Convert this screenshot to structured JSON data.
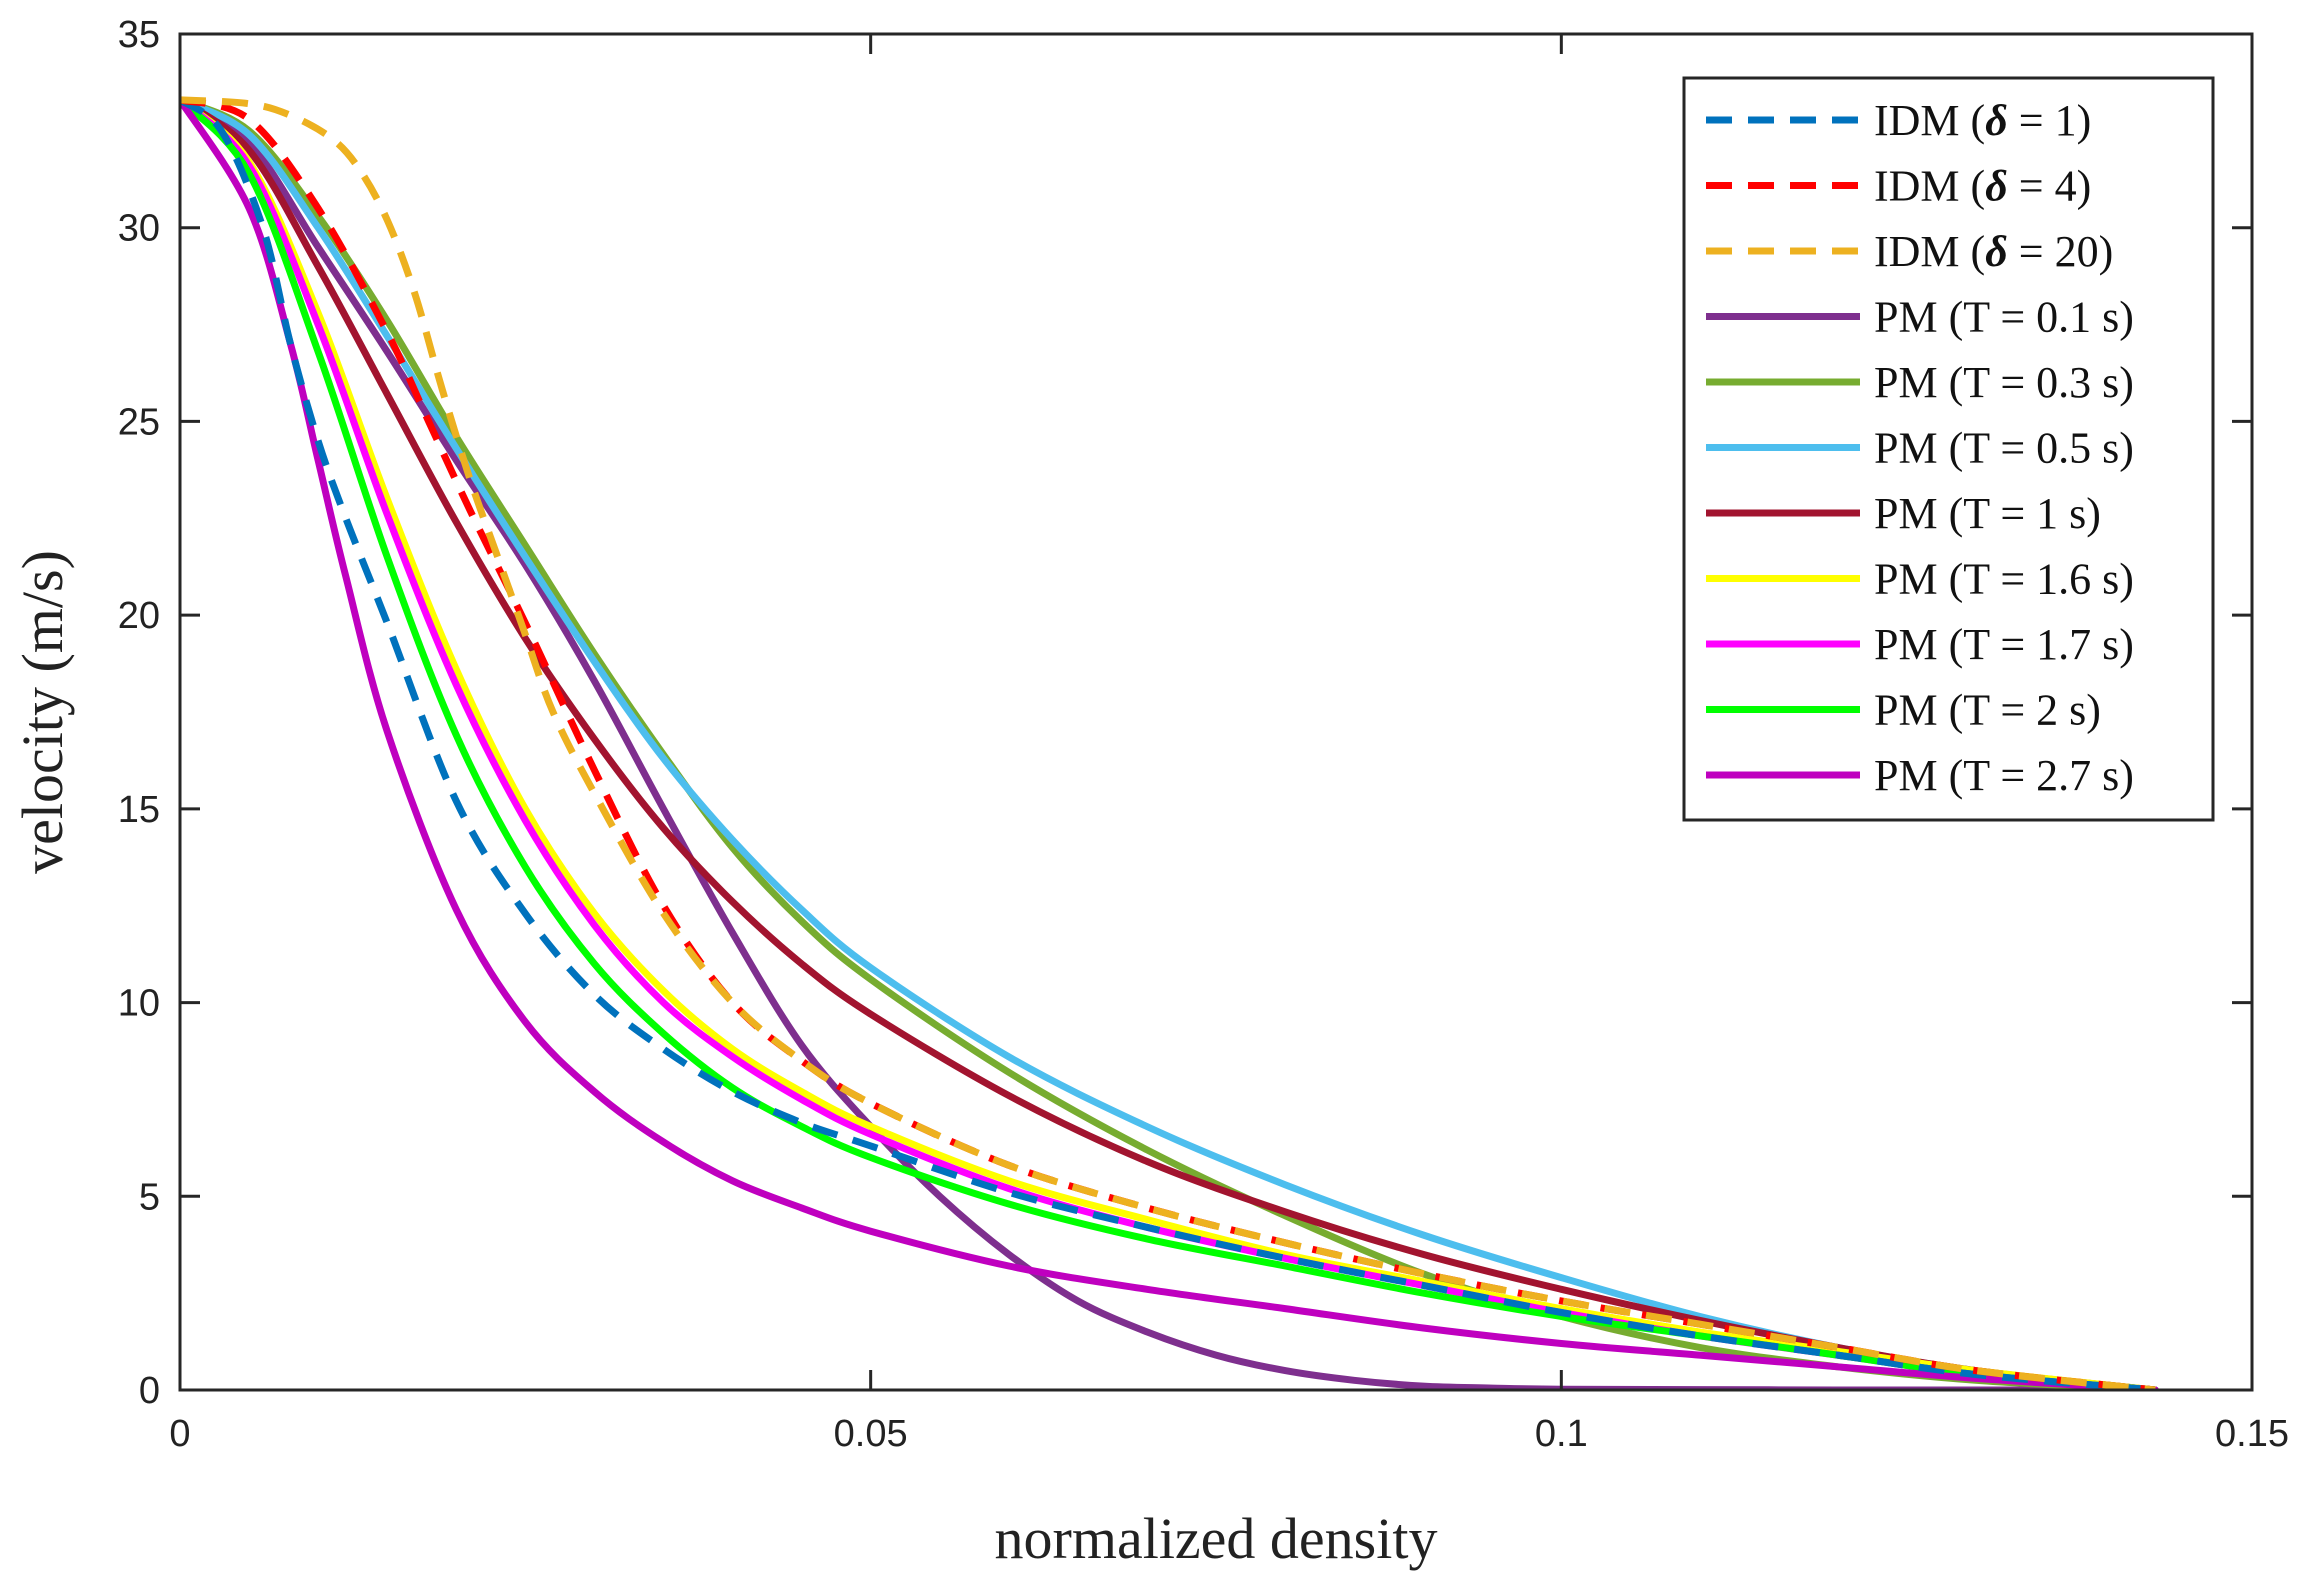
{
  "chart_data": {
    "type": "line",
    "title": "",
    "xlabel": "normalized density",
    "ylabel": "velocity (m/s)",
    "xlim": [
      0,
      0.15
    ],
    "ylim": [
      0,
      35
    ],
    "xticks": [
      0,
      0.05,
      0.1,
      0.15
    ],
    "xtick_labels": [
      "0",
      "0.05",
      "0.1",
      "0.15"
    ],
    "yticks": [
      0,
      5,
      10,
      15,
      20,
      25,
      30,
      35
    ],
    "ytick_labels": [
      "0",
      "5",
      "10",
      "15",
      "20",
      "25",
      "30",
      "35"
    ],
    "grid": false,
    "legend_position": "top-right",
    "series": [
      {
        "name": "IDM (δ = 1)",
        "label_prefix": "IDM (",
        "label_symbol": "δ",
        "label_suffix": " = 1)",
        "color": "#0072BD",
        "dash": true,
        "x": [
          0,
          0.003,
          0.006,
          0.008,
          0.01,
          0.012,
          0.015,
          0.02,
          0.025,
          0.03,
          0.035,
          0.04,
          0.045,
          0.05,
          0.06,
          0.07,
          0.08,
          0.09,
          0.1,
          0.11,
          0.12,
          0.13,
          0.143
        ],
        "y": [
          33.3,
          32.5,
          30.0,
          27.0,
          24.5,
          22.5,
          19.8,
          15.2,
          12.3,
          10.2,
          8.8,
          7.7,
          6.9,
          6.3,
          5.1,
          4.2,
          3.4,
          2.7,
          2.0,
          1.4,
          0.9,
          0.4,
          0
        ]
      },
      {
        "name": "IDM (δ = 4)",
        "label_prefix": "IDM (",
        "label_symbol": "δ",
        "label_suffix": " = 4)",
        "color": "#FF0000",
        "dash": true,
        "x": [
          0,
          0.005,
          0.01,
          0.015,
          0.018,
          0.021,
          0.025,
          0.03,
          0.035,
          0.04,
          0.045,
          0.05,
          0.06,
          0.07,
          0.08,
          0.09,
          0.1,
          0.11,
          0.12,
          0.13,
          0.143
        ],
        "y": [
          33.3,
          32.8,
          30.5,
          27.3,
          25.0,
          22.7,
          19.8,
          16.0,
          12.5,
          10.0,
          8.5,
          7.4,
          5.8,
          4.7,
          3.8,
          3.0,
          2.3,
          1.7,
          1.1,
          0.5,
          0
        ]
      },
      {
        "name": "IDM (δ = 20)",
        "label_prefix": "IDM (",
        "label_symbol": "δ",
        "label_suffix": " = 20)",
        "color": "#EDB120",
        "dash": true,
        "x": [
          0,
          0.005,
          0.008,
          0.011,
          0.013,
          0.015,
          0.017,
          0.019,
          0.021,
          0.023,
          0.025,
          0.027,
          0.03,
          0.035,
          0.04,
          0.045,
          0.05,
          0.06,
          0.07,
          0.08,
          0.09,
          0.1,
          0.11,
          0.12,
          0.13,
          0.143
        ],
        "y": [
          33.3,
          33.2,
          32.9,
          32.3,
          31.5,
          30.2,
          28.3,
          25.8,
          23.5,
          21.5,
          19.5,
          17.5,
          15.4,
          12.3,
          10.0,
          8.5,
          7.4,
          5.8,
          4.7,
          3.8,
          3.0,
          2.3,
          1.7,
          1.1,
          0.5,
          0
        ]
      },
      {
        "name": "PM (T = 0.1 s)",
        "label_prefix": "PM (T = 0.1 s)",
        "label_symbol": "",
        "label_suffix": "",
        "color": "#7E2F8E",
        "dash": false,
        "x": [
          0,
          0.005,
          0.01,
          0.015,
          0.02,
          0.025,
          0.03,
          0.035,
          0.04,
          0.045,
          0.05,
          0.055,
          0.06,
          0.065,
          0.07,
          0.075,
          0.08,
          0.085,
          0.09,
          0.095,
          0.1,
          0.11,
          0.12,
          0.13,
          0.143
        ],
        "y": [
          33.3,
          32.2,
          29.5,
          26.8,
          24.0,
          21.3,
          18.3,
          15.0,
          11.8,
          8.9,
          6.8,
          5.0,
          3.5,
          2.3,
          1.5,
          0.9,
          0.5,
          0.25,
          0.1,
          0.05,
          0.02,
          0.01,
          0,
          0,
          0
        ]
      },
      {
        "name": "PM (T = 0.3 s)",
        "label_prefix": "PM (T = 0.3 s)",
        "label_symbol": "",
        "label_suffix": "",
        "color": "#77AC30",
        "dash": false,
        "x": [
          0,
          0.005,
          0.01,
          0.015,
          0.02,
          0.025,
          0.03,
          0.035,
          0.04,
          0.045,
          0.05,
          0.06,
          0.07,
          0.08,
          0.09,
          0.1,
          0.11,
          0.12,
          0.13,
          0.143
        ],
        "y": [
          33.3,
          32.5,
          30.3,
          27.6,
          24.6,
          21.8,
          19.0,
          16.4,
          14.0,
          12.1,
          10.6,
          8.2,
          6.2,
          4.5,
          3.0,
          1.9,
          1.1,
          0.6,
          0.25,
          0
        ]
      },
      {
        "name": "PM (T = 0.5 s)",
        "label_prefix": "PM (T = 0.5 s)",
        "label_symbol": "",
        "label_suffix": "",
        "color": "#4DBEEE",
        "dash": false,
        "x": [
          0,
          0.005,
          0.01,
          0.015,
          0.02,
          0.025,
          0.03,
          0.035,
          0.04,
          0.045,
          0.05,
          0.06,
          0.07,
          0.08,
          0.09,
          0.1,
          0.11,
          0.12,
          0.13,
          0.143
        ],
        "y": [
          33.3,
          32.4,
          30.0,
          27.2,
          24.3,
          21.5,
          18.8,
          16.3,
          14.2,
          12.4,
          10.9,
          8.6,
          6.8,
          5.3,
          4.0,
          2.9,
          1.9,
          1.1,
          0.5,
          0
        ]
      },
      {
        "name": "PM (T = 1 s)",
        "label_prefix": "PM (T = 1 s)",
        "label_symbol": "",
        "label_suffix": "",
        "color": "#A2142F",
        "dash": false,
        "x": [
          0,
          0.005,
          0.01,
          0.015,
          0.02,
          0.025,
          0.03,
          0.035,
          0.04,
          0.045,
          0.05,
          0.06,
          0.07,
          0.08,
          0.09,
          0.1,
          0.11,
          0.12,
          0.13,
          0.143
        ],
        "y": [
          33.3,
          32.0,
          29.0,
          25.7,
          22.4,
          19.4,
          16.8,
          14.5,
          12.6,
          11.0,
          9.7,
          7.6,
          5.9,
          4.6,
          3.5,
          2.6,
          1.8,
          1.1,
          0.5,
          0
        ]
      },
      {
        "name": "PM (T = 1.6 s)",
        "label_prefix": "PM (T = 1.6 s)",
        "label_symbol": "",
        "label_suffix": "",
        "color": "#FFFF00",
        "dash": false,
        "x": [
          0,
          0.005,
          0.01,
          0.015,
          0.02,
          0.025,
          0.03,
          0.035,
          0.04,
          0.045,
          0.05,
          0.06,
          0.07,
          0.08,
          0.09,
          0.1,
          0.11,
          0.12,
          0.13,
          0.143
        ],
        "y": [
          33.3,
          31.7,
          27.8,
          23.0,
          18.6,
          15.0,
          12.3,
          10.3,
          8.8,
          7.7,
          6.8,
          5.4,
          4.4,
          3.5,
          2.8,
          2.1,
          1.5,
          1.0,
          0.5,
          0
        ]
      },
      {
        "name": "PM (T = 1.7 s)",
        "label_prefix": "PM (T = 1.7 s)",
        "label_symbol": "",
        "label_suffix": "",
        "color": "#FF00FF",
        "dash": false,
        "x": [
          0,
          0.005,
          0.01,
          0.015,
          0.02,
          0.025,
          0.03,
          0.035,
          0.04,
          0.045,
          0.05,
          0.06,
          0.07,
          0.08,
          0.09,
          0.1,
          0.11,
          0.12,
          0.13,
          0.143
        ],
        "y": [
          33.3,
          31.6,
          27.5,
          22.6,
          18.2,
          14.7,
          12.0,
          10.0,
          8.6,
          7.5,
          6.6,
          5.2,
          4.2,
          3.4,
          2.7,
          2.0,
          1.4,
          0.9,
          0.4,
          0
        ]
      },
      {
        "name": "PM (T = 2 s)",
        "label_prefix": "PM (T = 2 s)",
        "label_symbol": "",
        "label_suffix": "",
        "color": "#00FF00",
        "dash": false,
        "x": [
          0,
          0.005,
          0.01,
          0.015,
          0.02,
          0.025,
          0.03,
          0.035,
          0.04,
          0.045,
          0.05,
          0.06,
          0.07,
          0.08,
          0.09,
          0.1,
          0.11,
          0.12,
          0.13,
          0.143
        ],
        "y": [
          33.3,
          31.4,
          26.8,
          21.5,
          16.9,
          13.5,
          11.0,
          9.2,
          7.8,
          6.8,
          6.0,
          4.8,
          3.9,
          3.2,
          2.5,
          1.9,
          1.4,
          0.9,
          0.4,
          0
        ]
      },
      {
        "name": "PM (T = 2.7 s)",
        "label_prefix": "PM (T = 2.7 s)",
        "label_symbol": "",
        "label_suffix": "",
        "color": "#BF00BF",
        "dash": false,
        "x": [
          0,
          0.005,
          0.008,
          0.01,
          0.012,
          0.015,
          0.02,
          0.025,
          0.03,
          0.035,
          0.04,
          0.045,
          0.05,
          0.06,
          0.07,
          0.08,
          0.09,
          0.1,
          0.11,
          0.12,
          0.13,
          0.143
        ],
        "y": [
          33.3,
          30.5,
          27.0,
          24.0,
          21.0,
          17.0,
          12.4,
          9.5,
          7.7,
          6.4,
          5.4,
          4.7,
          4.1,
          3.2,
          2.6,
          2.1,
          1.6,
          1.2,
          0.9,
          0.6,
          0.3,
          0
        ]
      }
    ]
  }
}
